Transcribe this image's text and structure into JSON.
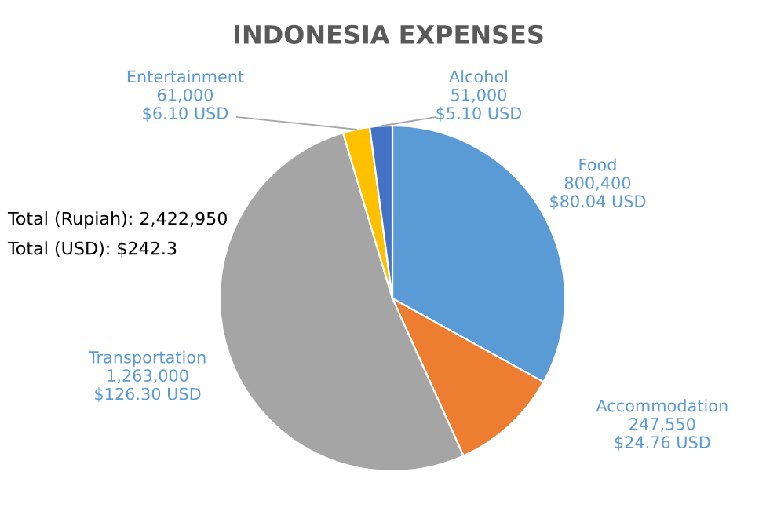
{
  "chart_data": {
    "type": "pie",
    "title": "INDONESIA EXPENSES",
    "categories": [
      "Food",
      "Accommodation",
      "Transportation",
      "Entertainment",
      "Alcohol"
    ],
    "values": [
      800400,
      247550,
      1263000,
      61000,
      51000
    ],
    "colors": [
      "#5b9bd5",
      "#ed7d31",
      "#a5a5a5",
      "#ffc000",
      "#4472c4"
    ],
    "value_labels": [
      "800,400\n$80.04 USD",
      "247,550\n$24.76 USD",
      "1,263,000\n$126.30 USD",
      "61,000\n$6.10 USD",
      "51,000\n$5.10 USD"
    ],
    "annotations": [
      "Total (Rupiah): 2,422,950",
      "Total (USD): $242.3"
    ],
    "legend": false
  }
}
